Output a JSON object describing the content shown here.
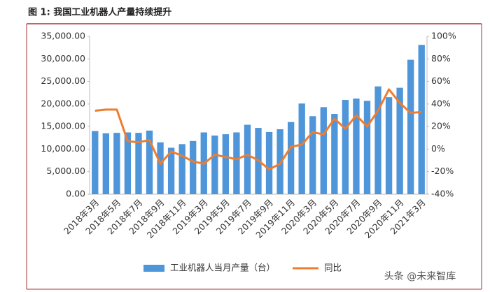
{
  "chart_data": {
    "type": "bar_line",
    "title": "图 1: 我国工业机器人产量持续提升",
    "categories": [
      "2018年3月",
      null,
      "2018年5月",
      null,
      "2018年7月",
      null,
      "2018年9月",
      null,
      "2018年11月",
      null,
      "2019年3月",
      null,
      "2019年5月",
      null,
      "2019年7月",
      null,
      "2019年9月",
      null,
      "2019年11月",
      null,
      "2020年3月",
      null,
      "2020年5月",
      null,
      "2020年7月",
      null,
      "2020年9月",
      null,
      "2020年11月",
      null,
      "2021年3月"
    ],
    "series": [
      {
        "name": "工业机器人当月产量（台）",
        "color": "#4e95d9",
        "axis": "y",
        "values": [
          14000,
          13500,
          13600,
          13700,
          13600,
          14100,
          11500,
          10300,
          11100,
          11800,
          13700,
          13000,
          13300,
          13700,
          15400,
          14700,
          13800,
          14400,
          16000,
          20100,
          17300,
          19300,
          17800,
          20900,
          21200,
          20700,
          23900,
          21500,
          23600,
          29800,
          33100
        ]
      },
      {
        "name": "同比",
        "color": "#ed7d31",
        "axis": "y2",
        "values": [
          34,
          35,
          35,
          7,
          6,
          8,
          -13,
          -2,
          -6,
          -11,
          -13,
          -5,
          -7,
          -9,
          -5,
          -10,
          -18,
          -13,
          2,
          4,
          15,
          13,
          27,
          18,
          30,
          20,
          34,
          53,
          41,
          32,
          33
        ]
      }
    ],
    "ylim": [
      0,
      35000
    ],
    "yticks": [
      {
        "value": 0,
        "label": "0.00"
      },
      {
        "value": 5000,
        "label": "5,000.00"
      },
      {
        "value": 10000,
        "label": "10,000.00"
      },
      {
        "value": 15000,
        "label": "15,000.00"
      },
      {
        "value": 20000,
        "label": "20,000.00"
      },
      {
        "value": 25000,
        "label": "25,000.00"
      },
      {
        "value": 30000,
        "label": "30,000.00"
      },
      {
        "value": 35000,
        "label": "35,000.00"
      }
    ],
    "y2lim": [
      -40,
      100
    ],
    "y2ticks": [
      {
        "value": -40,
        "label": "-40%"
      },
      {
        "value": -20,
        "label": "-20%"
      },
      {
        "value": 0,
        "label": "0%"
      },
      {
        "value": 20,
        "label": "20%"
      },
      {
        "value": 40,
        "label": "40%"
      },
      {
        "value": 60,
        "label": "60%"
      },
      {
        "value": 80,
        "label": "80%"
      },
      {
        "value": 100,
        "label": "100%"
      }
    ],
    "watermark": "头条 @未来智库"
  }
}
